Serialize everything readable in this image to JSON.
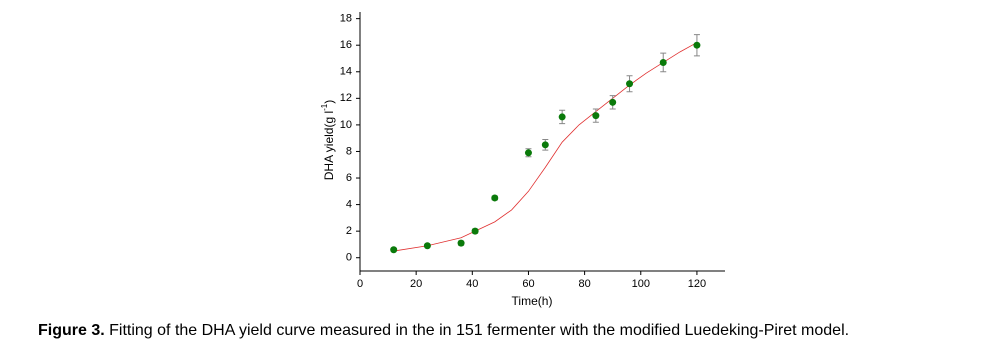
{
  "chart_data": {
    "type": "scatter",
    "x_label": "Time(h)",
    "y_label": {
      "main": "DHA yield(g l",
      "sup": "-1",
      "end": ")"
    },
    "xlim": [
      0,
      130
    ],
    "ylim": [
      -1,
      18.5
    ],
    "xticks": [
      0,
      20,
      40,
      60,
      80,
      100,
      120
    ],
    "yticks": [
      0,
      2,
      4,
      6,
      8,
      10,
      12,
      14,
      16,
      18
    ],
    "points": {
      "color": "#0a7a0a",
      "error_color": "#888888",
      "x": [
        12,
        24,
        36,
        41,
        48,
        60,
        66,
        72,
        84,
        90,
        96,
        108,
        120
      ],
      "values": [
        0.6,
        0.9,
        1.1,
        2.0,
        4.5,
        7.9,
        8.5,
        10.6,
        10.7,
        11.7,
        13.1,
        14.7,
        16.0
      ],
      "errors": [
        0.1,
        0.1,
        0.15,
        0.15,
        0.15,
        0.3,
        0.4,
        0.5,
        0.5,
        0.5,
        0.6,
        0.7,
        0.8
      ]
    },
    "fit": {
      "color": "#e03030",
      "x": [
        12,
        24,
        36,
        48,
        54,
        60,
        66,
        72,
        78,
        84,
        90,
        96,
        102,
        108,
        114,
        120
      ],
      "values": [
        0.5,
        0.9,
        1.5,
        2.7,
        3.6,
        5.0,
        6.8,
        8.7,
        10.0,
        11.0,
        12.0,
        13.0,
        13.9,
        14.7,
        15.5,
        16.2
      ]
    }
  },
  "caption": {
    "label": "Figure 3.",
    "text": " Fitting of the DHA yield curve measured in the in 151 fermenter with the modified Luedeking-Piret model."
  }
}
